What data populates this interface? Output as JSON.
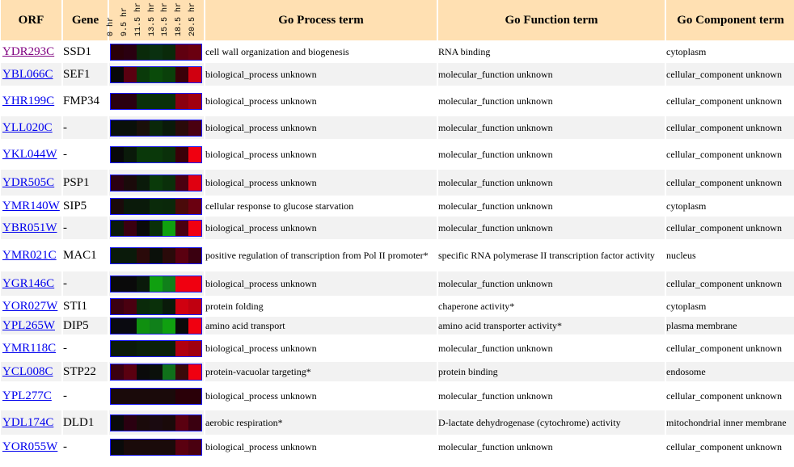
{
  "headers": {
    "orf": "ORF",
    "gene": "Gene",
    "process": "Go Process term",
    "function": "Go Function term",
    "component": "Go Component term"
  },
  "timepoints": [
    "0 hr",
    "9.5 hr",
    "11.5 hr",
    "13.5 hr",
    "15.5 hr",
    "18.5 hr",
    "20.5 hr"
  ],
  "colors": {
    "link": "#0000ee",
    "visited_link": "#800080",
    "header_bg": "#ffe0b2",
    "heatmap_border": "#1a1aff"
  },
  "rows": [
    {
      "orf": "YDR293C",
      "gene": "SSD1",
      "process": "cell wall organization and biogenesis",
      "function": "RNA binding",
      "component": "cytoplasm",
      "visited": true,
      "heat": [
        "#2a0008",
        "#2a0010",
        "#0a2a0a",
        "#0a3010",
        "#0a2a0a",
        "#600010",
        "#6a0010"
      ]
    },
    {
      "orf": "YBL066C",
      "gene": "SEF1",
      "process": "biological_process unknown",
      "function": "molecular_function unknown",
      "component": "cellular_component unknown",
      "heat": [
        "#080808",
        "#5a0010",
        "#0a3a0a",
        "#0a4a0a",
        "#0a400a",
        "#3a0008",
        "#d00010"
      ]
    },
    {
      "orf": "YHR199C",
      "gene": "FMP34",
      "process": "biological_process unknown",
      "function": "molecular_function unknown",
      "component": "cellular_component unknown",
      "heat": [
        "#2a0010",
        "#2a0010",
        "#0a300a",
        "#0a300a",
        "#0a300a",
        "#8a0010",
        "#a00010"
      ]
    },
    {
      "orf": "YLL020C",
      "gene": "-",
      "process": "biological_process unknown",
      "function": "molecular_function unknown",
      "component": "cellular_component unknown",
      "heat": [
        "#0a100a",
        "#0a100a",
        "#1a100a",
        "#0a280a",
        "#0a1a0a",
        "#2a0a0a",
        "#4a0010"
      ]
    },
    {
      "orf": "YKL044W",
      "gene": "-",
      "process": "biological_process unknown",
      "function": "molecular_function unknown",
      "component": "cellular_component unknown",
      "heat": [
        "#080808",
        "#0a1a0a",
        "#0a380a",
        "#0a380a",
        "#0a300a",
        "#3a0008",
        "#f00010"
      ]
    },
    {
      "orf": "YDR505C",
      "gene": "PSP1",
      "process": "biological_process unknown",
      "function": "molecular_function unknown",
      "component": "cellular_component unknown",
      "heat": [
        "#2a0010",
        "#1a0a0a",
        "#0a1a0a",
        "#0a3a0a",
        "#0a300a",
        "#4a0010",
        "#e00010"
      ]
    },
    {
      "orf": "YMR140W",
      "gene": "SIP5",
      "process": "cellular response to glucose starvation",
      "function": "molecular_function unknown",
      "component": "cytoplasm",
      "heat": [
        "#1a0a0a",
        "#0a1a0a",
        "#0a1a0a",
        "#0a2a0a",
        "#0a280a",
        "#4a0a0a",
        "#6a0010"
      ]
    },
    {
      "orf": "YBR051W",
      "gene": "-",
      "process": "biological_process unknown",
      "function": "molecular_function unknown",
      "component": "cellular_component unknown",
      "heat": [
        "#0a1a0a",
        "#3a0010",
        "#0a0a0a",
        "#0a300a",
        "#10a010",
        "#4a0010",
        "#f00010"
      ]
    },
    {
      "orf": "YMR021C",
      "gene": "MAC1",
      "process": "positive regulation of transcription from Pol II promoter*",
      "function": "specific RNA polymerase II transcription factor activity",
      "component": "nucleus",
      "heat": [
        "#0a1a0a",
        "#0a1a0a",
        "#2a0a0a",
        "#0a100a",
        "#2a0a0a",
        "#5a0010",
        "#3a0010"
      ]
    },
    {
      "orf": "YGR146C",
      "gene": "-",
      "process": "biological_process unknown",
      "function": "molecular_function unknown",
      "component": "cellular_component unknown",
      "heat": [
        "#0a0a0a",
        "#0a0a0a",
        "#0a1a0a",
        "#10a010",
        "#10801a",
        "#f00010",
        "#f00010"
      ]
    },
    {
      "orf": "YOR027W",
      "gene": "STI1",
      "process": "protein folding",
      "function": "chaperone activity*",
      "component": "cytoplasm",
      "heat": [
        "#3a0010",
        "#4a0010",
        "#0a2a0a",
        "#0a300a",
        "#0a1a0a",
        "#d00010",
        "#c00010"
      ]
    },
    {
      "orf": "YPL265W",
      "gene": "DIP5",
      "process": "amino acid transport",
      "function": "amino acid transporter activity*",
      "component": "plasma membrane",
      "heat": [
        "#0a0a10",
        "#0a0a10",
        "#109010",
        "#10801a",
        "#10a010",
        "#0a0a0a",
        "#f00010"
      ]
    },
    {
      "orf": "YMR118C",
      "gene": "-",
      "process": "biological_process unknown",
      "function": "molecular_function unknown",
      "component": "cellular_component unknown",
      "heat": [
        "#0a1a0a",
        "#0a1a0a",
        "#0a200a",
        "#0a200a",
        "#0a200a",
        "#b00010",
        "#a00010"
      ]
    },
    {
      "orf": "YCL008C",
      "gene": "STP22",
      "process": "protein-vacuolar targeting*",
      "function": "protein binding",
      "component": "endosome",
      "heat": [
        "#3a0010",
        "#5a0010",
        "#0a0a0a",
        "#0a100a",
        "#10701a",
        "#3a0a0a",
        "#f00010"
      ]
    },
    {
      "orf": "YPL277C",
      "gene": "-",
      "process": "biological_process unknown",
      "function": "molecular_function unknown",
      "component": "cellular_component unknown",
      "heat": [
        "#1a0a0a",
        "#1a0a0a",
        "#1a0a0a",
        "#1a0a0a",
        "#1a0a0a",
        "#2a0008",
        "#2a0008"
      ]
    },
    {
      "orf": "YDL174C",
      "gene": "DLD1",
      "process": "aerobic respiration*",
      "function": "D-lactate dehydrogenase (cytochrome) activity",
      "component": "mitochondrial inner membrane",
      "heat": [
        "#0a0a0a",
        "#2a0010",
        "#1a0a0a",
        "#1a0a10",
        "#1a0a0a",
        "#5a0010",
        "#3a0010"
      ]
    },
    {
      "orf": "YOR055W",
      "gene": "-",
      "process": "biological_process unknown",
      "function": "molecular_function unknown",
      "component": "cellular_component unknown",
      "heat": [
        "#0a0a0a",
        "#1a0a0a",
        "#1a0a0a",
        "#1a0a0a",
        "#1a0a0a",
        "#5a0010",
        "#4a0010"
      ]
    }
  ]
}
